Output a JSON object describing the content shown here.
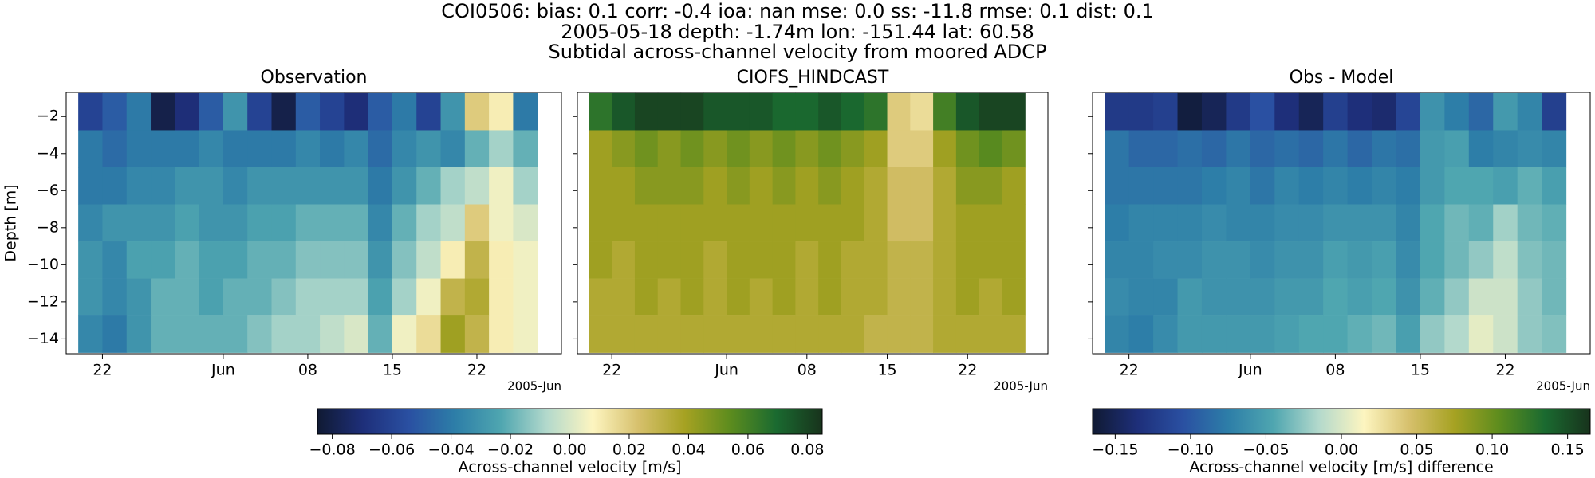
{
  "title_lines": [
    "COI0506: bias: 0.1  corr: -0.4  ioa: nan  mse: 0.0  ss: -11.8  rmse: 0.1  dist: 0.1",
    "2005-05-18 depth: -1.74m lon: -151.44 lat: 60.58",
    "Subtidal across-channel velocity from moored ADCP"
  ],
  "chart_data": [
    {
      "type": "heatmap",
      "title": "Observation",
      "ylabel": "Depth [m]",
      "show_ytick_labels": true,
      "x": [
        "2005-05-21",
        "2005-05-23",
        "2005-05-25",
        "2005-05-27",
        "2005-05-29",
        "2005-05-31",
        "2005-06-02",
        "2005-06-04",
        "2005-06-06",
        "2005-06-08",
        "2005-06-10",
        "2005-06-12",
        "2005-06-14",
        "2005-06-16",
        "2005-06-18",
        "2005-06-20",
        "2005-06-22",
        "2005-06-24",
        "2005-06-26"
      ],
      "y": [
        -1.74,
        -3.74,
        -5.74,
        -7.74,
        -9.74,
        -11.74,
        -13.74
      ],
      "values": [
        [
          -0.06,
          -0.05,
          -0.04,
          -0.08,
          -0.07,
          -0.05,
          -0.03,
          -0.06,
          -0.08,
          -0.05,
          -0.06,
          -0.07,
          -0.05,
          -0.04,
          -0.06,
          -0.03,
          0.02,
          0.01,
          -0.04
        ],
        [
          -0.04,
          -0.045,
          -0.04,
          -0.04,
          -0.04,
          -0.035,
          -0.04,
          -0.04,
          -0.04,
          -0.035,
          -0.04,
          -0.035,
          -0.045,
          -0.035,
          -0.03,
          -0.035,
          -0.02,
          -0.01,
          -0.02
        ],
        [
          -0.04,
          -0.04,
          -0.035,
          -0.035,
          -0.03,
          -0.03,
          -0.035,
          -0.03,
          -0.03,
          -0.03,
          -0.03,
          -0.03,
          -0.04,
          -0.03,
          -0.02,
          -0.01,
          -0.005,
          0.005,
          -0.01
        ],
        [
          -0.035,
          -0.03,
          -0.03,
          -0.03,
          -0.025,
          -0.03,
          -0.03,
          -0.025,
          -0.025,
          -0.02,
          -0.02,
          -0.02,
          -0.035,
          -0.02,
          -0.01,
          -0.005,
          0.02,
          0.005,
          0.0
        ],
        [
          -0.03,
          -0.035,
          -0.025,
          -0.025,
          -0.02,
          -0.025,
          -0.025,
          -0.02,
          -0.02,
          -0.015,
          -0.015,
          -0.015,
          -0.03,
          -0.015,
          -0.005,
          0.01,
          0.03,
          0.01,
          0.005
        ],
        [
          -0.03,
          -0.035,
          -0.03,
          -0.02,
          -0.02,
          -0.025,
          -0.02,
          -0.02,
          -0.015,
          -0.01,
          -0.01,
          -0.01,
          -0.025,
          -0.01,
          0.005,
          0.03,
          0.035,
          0.01,
          0.005
        ],
        [
          -0.035,
          -0.04,
          -0.03,
          -0.02,
          -0.02,
          -0.02,
          -0.02,
          -0.015,
          -0.01,
          -0.01,
          -0.005,
          0.0,
          -0.02,
          0.005,
          0.015,
          0.04,
          0.03,
          0.01,
          0.005
        ]
      ],
      "xlim": [
        "2005-05-19",
        "2005-06-29"
      ],
      "ylim": [
        -14.8,
        -0.7
      ],
      "xticks": [
        {
          "value": "2005-05-22",
          "label": "22"
        },
        {
          "value": "2005-06-01",
          "label": "Jun"
        },
        {
          "value": "2005-06-08",
          "label": "08"
        },
        {
          "value": "2005-06-15",
          "label": "15"
        },
        {
          "value": "2005-06-22",
          "label": "22"
        }
      ],
      "yticks": [
        {
          "value": -2,
          "label": "−2"
        },
        {
          "value": -4,
          "label": "−4"
        },
        {
          "value": -6,
          "label": "−6"
        },
        {
          "value": -8,
          "label": "−8"
        },
        {
          "value": -10,
          "label": "−10"
        },
        {
          "value": -12,
          "label": "−12"
        },
        {
          "value": -14,
          "label": "−14"
        }
      ],
      "x_offset_label": "2005-Jun",
      "clim": [
        -0.085,
        0.085
      ],
      "colormap": [
        "#101a33",
        "#1e2f7a",
        "#2a50a2",
        "#2d7ea8",
        "#4fa6b0",
        "#b3d9cc",
        "#fdf5c0",
        "#d6c06c",
        "#a6a222",
        "#5c8c1e",
        "#1a6a30",
        "#18331c"
      ]
    },
    {
      "type": "heatmap",
      "title": "CIOFS_HINDCAST",
      "show_ytick_labels": false,
      "x": [
        "2005-05-21",
        "2005-05-23",
        "2005-05-25",
        "2005-05-27",
        "2005-05-29",
        "2005-05-31",
        "2005-06-02",
        "2005-06-04",
        "2005-06-06",
        "2005-06-08",
        "2005-06-10",
        "2005-06-12",
        "2005-06-14",
        "2005-06-16",
        "2005-06-18",
        "2005-06-20",
        "2005-06-22",
        "2005-06-24",
        "2005-06-26"
      ],
      "y": [
        -1.74,
        -3.74,
        -5.74,
        -7.74,
        -9.74,
        -11.74,
        -13.74
      ],
      "values": [
        [
          0.065,
          0.075,
          0.08,
          0.08,
          0.08,
          0.075,
          0.075,
          0.075,
          0.07,
          0.07,
          0.075,
          0.07,
          0.065,
          0.02,
          0.015,
          0.06,
          0.075,
          0.08,
          0.08
        ],
        [
          0.04,
          0.045,
          0.05,
          0.045,
          0.05,
          0.045,
          0.05,
          0.045,
          0.05,
          0.045,
          0.05,
          0.045,
          0.04,
          0.02,
          0.02,
          0.04,
          0.05,
          0.055,
          0.05
        ],
        [
          0.04,
          0.04,
          0.045,
          0.045,
          0.045,
          0.04,
          0.045,
          0.04,
          0.045,
          0.04,
          0.045,
          0.04,
          0.035,
          0.025,
          0.025,
          0.035,
          0.045,
          0.045,
          0.04
        ],
        [
          0.04,
          0.04,
          0.04,
          0.04,
          0.04,
          0.04,
          0.04,
          0.04,
          0.04,
          0.04,
          0.04,
          0.04,
          0.035,
          0.025,
          0.025,
          0.035,
          0.04,
          0.04,
          0.04
        ],
        [
          0.04,
          0.035,
          0.04,
          0.04,
          0.04,
          0.035,
          0.04,
          0.04,
          0.04,
          0.035,
          0.04,
          0.035,
          0.035,
          0.03,
          0.03,
          0.035,
          0.04,
          0.04,
          0.04
        ],
        [
          0.035,
          0.035,
          0.04,
          0.035,
          0.04,
          0.035,
          0.04,
          0.035,
          0.04,
          0.035,
          0.04,
          0.035,
          0.035,
          0.03,
          0.03,
          0.035,
          0.04,
          0.035,
          0.04
        ],
        [
          0.035,
          0.035,
          0.035,
          0.035,
          0.035,
          0.035,
          0.035,
          0.035,
          0.035,
          0.035,
          0.035,
          0.035,
          0.03,
          0.03,
          0.03,
          0.035,
          0.035,
          0.035,
          0.035
        ]
      ],
      "xlim": [
        "2005-05-19",
        "2005-06-29"
      ],
      "ylim": [
        -14.8,
        -0.7
      ],
      "xticks": [
        {
          "value": "2005-05-22",
          "label": "22"
        },
        {
          "value": "2005-06-01",
          "label": "Jun"
        },
        {
          "value": "2005-06-08",
          "label": "08"
        },
        {
          "value": "2005-06-15",
          "label": "15"
        },
        {
          "value": "2005-06-22",
          "label": "22"
        }
      ],
      "yticks": [
        -2,
        -4,
        -6,
        -8,
        -10,
        -12,
        -14
      ],
      "x_offset_label": "2005-Jun",
      "clim": [
        -0.085,
        0.085
      ],
      "colormap": [
        "#101a33",
        "#1e2f7a",
        "#2a50a2",
        "#2d7ea8",
        "#4fa6b0",
        "#b3d9cc",
        "#fdf5c0",
        "#d6c06c",
        "#a6a222",
        "#5c8c1e",
        "#1a6a30",
        "#18331c"
      ]
    },
    {
      "type": "heatmap",
      "title": "Obs - Model",
      "show_ytick_labels": false,
      "x": [
        "2005-05-21",
        "2005-05-23",
        "2005-05-25",
        "2005-05-27",
        "2005-05-29",
        "2005-05-31",
        "2005-06-02",
        "2005-06-04",
        "2005-06-06",
        "2005-06-08",
        "2005-06-10",
        "2005-06-12",
        "2005-06-14",
        "2005-06-16",
        "2005-06-18",
        "2005-06-20",
        "2005-06-22",
        "2005-06-24",
        "2005-06-26"
      ],
      "y": [
        -1.74,
        -3.74,
        -5.74,
        -7.74,
        -9.74,
        -11.74,
        -13.74
      ],
      "values": [
        [
          -0.125,
          -0.125,
          -0.12,
          -0.16,
          -0.15,
          -0.125,
          -0.105,
          -0.135,
          -0.15,
          -0.12,
          -0.135,
          -0.14,
          -0.115,
          -0.06,
          -0.075,
          -0.09,
          -0.055,
          -0.07,
          -0.12
        ],
        [
          -0.08,
          -0.09,
          -0.09,
          -0.085,
          -0.09,
          -0.08,
          -0.09,
          -0.085,
          -0.09,
          -0.08,
          -0.09,
          -0.08,
          -0.085,
          -0.055,
          -0.05,
          -0.075,
          -0.07,
          -0.065,
          -0.07
        ],
        [
          -0.08,
          -0.08,
          -0.08,
          -0.08,
          -0.075,
          -0.07,
          -0.08,
          -0.07,
          -0.075,
          -0.07,
          -0.075,
          -0.07,
          -0.075,
          -0.055,
          -0.045,
          -0.045,
          -0.05,
          -0.04,
          -0.05
        ],
        [
          -0.075,
          -0.07,
          -0.07,
          -0.07,
          -0.065,
          -0.07,
          -0.07,
          -0.065,
          -0.065,
          -0.06,
          -0.06,
          -0.06,
          -0.07,
          -0.045,
          -0.035,
          -0.04,
          -0.02,
          -0.035,
          -0.04
        ],
        [
          -0.07,
          -0.07,
          -0.065,
          -0.065,
          -0.06,
          -0.06,
          -0.065,
          -0.06,
          -0.06,
          -0.05,
          -0.055,
          -0.05,
          -0.065,
          -0.045,
          -0.035,
          -0.025,
          -0.01,
          -0.03,
          -0.035
        ],
        [
          -0.065,
          -0.07,
          -0.07,
          -0.055,
          -0.06,
          -0.06,
          -0.06,
          -0.055,
          -0.055,
          -0.045,
          -0.05,
          -0.045,
          -0.06,
          -0.04,
          -0.025,
          -0.005,
          -0.005,
          -0.025,
          -0.035
        ],
        [
          -0.07,
          -0.075,
          -0.065,
          -0.055,
          -0.055,
          -0.055,
          -0.055,
          -0.05,
          -0.045,
          -0.045,
          -0.04,
          -0.035,
          -0.05,
          -0.025,
          -0.015,
          0.005,
          -0.005,
          -0.025,
          -0.03
        ]
      ],
      "xlim": [
        "2005-05-19",
        "2005-06-29"
      ],
      "ylim": [
        -14.8,
        -0.7
      ],
      "xticks": [
        {
          "value": "2005-05-22",
          "label": "22"
        },
        {
          "value": "2005-06-01",
          "label": "Jun"
        },
        {
          "value": "2005-06-08",
          "label": "08"
        },
        {
          "value": "2005-06-15",
          "label": "15"
        },
        {
          "value": "2005-06-22",
          "label": "22"
        }
      ],
      "yticks": [
        -2,
        -4,
        -6,
        -8,
        -10,
        -12,
        -14
      ],
      "x_offset_label": "2005-Jun",
      "clim": [
        -0.165,
        0.165
      ],
      "colormap": [
        "#101a33",
        "#1e2f7a",
        "#2a50a2",
        "#2d7ea8",
        "#4fa6b0",
        "#b3d9cc",
        "#fdf5c0",
        "#d6c06c",
        "#a6a222",
        "#5c8c1e",
        "#1a6a30",
        "#18331c"
      ]
    },
    {
      "type": "colorbar",
      "label": "Across-channel velocity [m/s]",
      "xlim": [
        -0.085,
        0.085
      ],
      "xticks": [
        {
          "value": -0.08,
          "label": "−0.08"
        },
        {
          "value": -0.06,
          "label": "−0.06"
        },
        {
          "value": -0.04,
          "label": "−0.04"
        },
        {
          "value": -0.02,
          "label": "−0.02"
        },
        {
          "value": 0,
          "label": "0.00"
        },
        {
          "value": 0.02,
          "label": "0.02"
        },
        {
          "value": 0.04,
          "label": "0.04"
        },
        {
          "value": 0.06,
          "label": "0.06"
        },
        {
          "value": 0.08,
          "label": "0.08"
        }
      ],
      "colormap": [
        "#101a33",
        "#1e2f7a",
        "#2a50a2",
        "#2d7ea8",
        "#4fa6b0",
        "#b3d9cc",
        "#fdf5c0",
        "#d6c06c",
        "#a6a222",
        "#5c8c1e",
        "#1a6a30",
        "#18331c"
      ]
    },
    {
      "type": "colorbar",
      "label": "Across-channel velocity [m/s] difference",
      "xlim": [
        -0.165,
        0.165
      ],
      "xticks": [
        {
          "value": -0.15,
          "label": "−0.15"
        },
        {
          "value": -0.1,
          "label": "−0.10"
        },
        {
          "value": -0.05,
          "label": "−0.05"
        },
        {
          "value": 0,
          "label": "0.00"
        },
        {
          "value": 0.05,
          "label": "0.05"
        },
        {
          "value": 0.1,
          "label": "0.10"
        },
        {
          "value": 0.15,
          "label": "0.15"
        }
      ],
      "colormap": [
        "#101a33",
        "#1e2f7a",
        "#2a50a2",
        "#2d7ea8",
        "#4fa6b0",
        "#b3d9cc",
        "#fdf5c0",
        "#d6c06c",
        "#a6a222",
        "#5c8c1e",
        "#1a6a30",
        "#18331c"
      ]
    }
  ]
}
